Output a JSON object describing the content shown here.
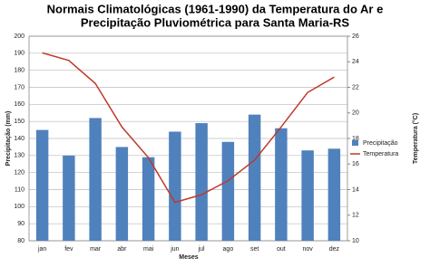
{
  "chart_data": {
    "type": "bar-line",
    "title_lines": [
      "Normais Climatológicas (1961-1990) da Temperatura do Ar e",
      "Precipitação Pluviométrica para Santa Maria-RS"
    ],
    "x_label": "Meses",
    "y_label": "Precipitação (mm)",
    "y2_label": "Temperatura (°C)",
    "categories": [
      "jan",
      "fev",
      "mar",
      "abr",
      "mai",
      "jun",
      "jul",
      "ago",
      "set",
      "out",
      "nov",
      "dez"
    ],
    "series": [
      {
        "name": "Precipitação",
        "type": "bar",
        "color": "#4f81bd",
        "values": [
          145,
          130,
          152,
          135,
          129,
          144,
          149,
          138,
          154,
          146,
          133,
          134
        ]
      },
      {
        "name": "Temperatura",
        "type": "line",
        "axis": "y2",
        "color": "#c0392b",
        "values": [
          24.7,
          24.1,
          22.3,
          18.9,
          16.5,
          13.0,
          13.6,
          14.7,
          16.3,
          18.9,
          21.6,
          22.8
        ]
      }
    ],
    "ylim": [
      80,
      200
    ],
    "yticks": [
      80,
      90,
      100,
      110,
      120,
      130,
      140,
      150,
      160,
      170,
      180,
      190,
      200
    ],
    "y2lim": [
      10,
      26
    ],
    "y2ticks": [
      10,
      12,
      14,
      16,
      18,
      20,
      22,
      24,
      26
    ],
    "grid": true,
    "legend": "right"
  }
}
